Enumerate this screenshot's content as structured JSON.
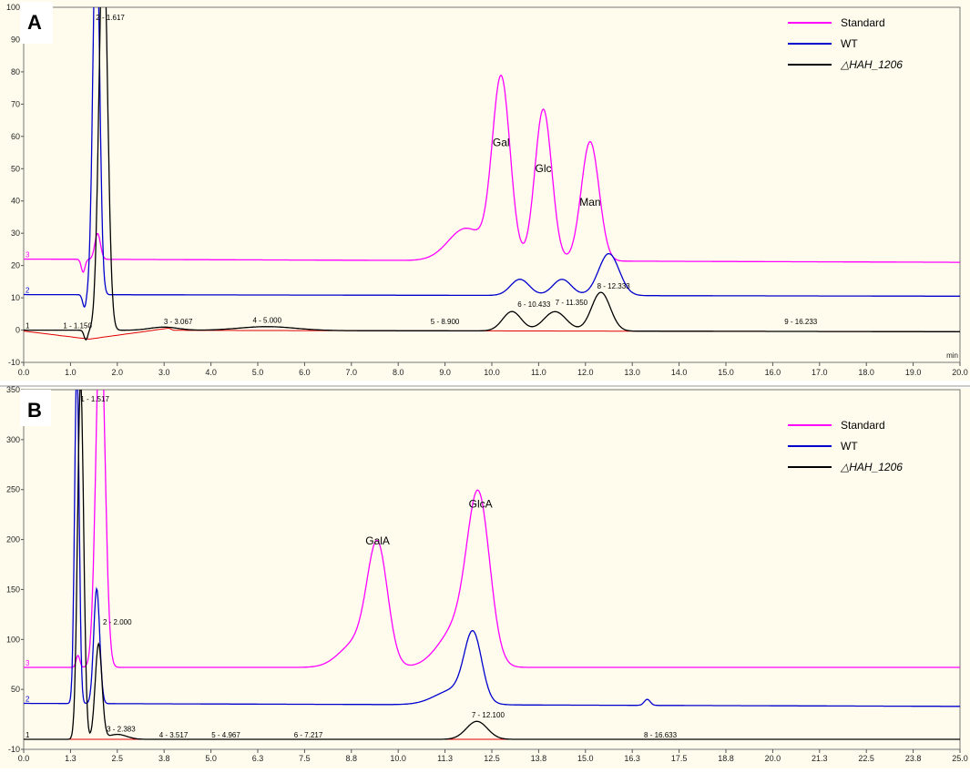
{
  "chart_data": [
    {
      "panel": "A",
      "type": "line",
      "y_unit": "nC",
      "x_unit": "min",
      "xlim": [
        0,
        20
      ],
      "ylim": [
        -10,
        100
      ],
      "x_ticks": [
        "0.0",
        "1.0",
        "2.0",
        "3.0",
        "4.0",
        "5.0",
        "6.0",
        "7.0",
        "8.0",
        "9.0",
        "10.0",
        "11.0",
        "12.0",
        "13.0",
        "14.0",
        "15.0",
        "16.0",
        "17.0",
        "18.0",
        "19.0",
        "20.0"
      ],
      "y_ticks": [
        "-10",
        "0",
        "10",
        "20",
        "30",
        "40",
        "50",
        "60",
        "70",
        "80",
        "90",
        "100"
      ],
      "trace_markers": [
        "3",
        "2",
        "1"
      ],
      "legend": [
        {
          "name": "Standard",
          "color": "#ff00ff",
          "italic": false
        },
        {
          "name": "WT",
          "color": "#0000cc",
          "italic": false
        },
        {
          "name": "△HAH_1206",
          "color": "#000000",
          "italic": true
        }
      ],
      "series": [
        {
          "name": "Standard",
          "color": "#ff00ff",
          "baseline": 22,
          "baseline_end": 21,
          "start_offset": 0,
          "peaks": [
            [
              1.27,
              -4,
              0.04
            ],
            [
              1.58,
              8,
              0.06
            ],
            [
              9.45,
              10,
              0.38
            ],
            [
              10.2,
              56,
              0.19
            ],
            [
              11.1,
              47,
              0.18
            ],
            [
              12.1,
              37,
              0.19
            ]
          ]
        },
        {
          "name": "WT",
          "color": "#0000cc",
          "baseline": 11,
          "baseline_end": 10.5,
          "start_offset": 0,
          "peaks": [
            [
              1.3,
              -4,
              0.04
            ],
            [
              1.55,
              120,
              0.07
            ],
            [
              10.6,
              5,
              0.2
            ],
            [
              11.5,
              5,
              0.2
            ],
            [
              12.5,
              13,
              0.22
            ]
          ]
        },
        {
          "name": "△HAH_1206",
          "color": "#000000",
          "baseline": 0,
          "baseline_end": -0.5,
          "start_offset": 0,
          "peaks": [
            [
              1.33,
              -3,
              0.04
            ],
            [
              1.7,
              125,
              0.09
            ],
            [
              3.0,
              1,
              0.3
            ],
            [
              5.2,
              1.2,
              0.6
            ],
            [
              10.43,
              6,
              0.2
            ],
            [
              11.35,
              6,
              0.24
            ],
            [
              12.33,
              12,
              0.2
            ]
          ]
        }
      ],
      "peak_labels": [
        {
          "text": "Gal",
          "x": 10.2,
          "y": 57
        },
        {
          "text": "Glc",
          "x": 11.1,
          "y": 49
        },
        {
          "text": "Man",
          "x": 12.1,
          "y": 38.5
        }
      ],
      "integration_labels": [
        {
          "text": "1 - 1.150",
          "x": 1.15,
          "y": 0.6
        },
        {
          "text": "2 - 1.617",
          "x": 1.85,
          "y": 96
        },
        {
          "text": "3 - 3.067",
          "x": 3.3,
          "y": 1.8
        },
        {
          "text": "4 - 5.000",
          "x": 5.2,
          "y": 2.2
        },
        {
          "text": "5 - 8.900",
          "x": 9.0,
          "y": 1.8
        },
        {
          "text": "6 - 10.433",
          "x": 10.9,
          "y": 7.2
        },
        {
          "text": "7 - 11.350",
          "x": 11.7,
          "y": 7.8
        },
        {
          "text": "8 - 12.333",
          "x": 12.6,
          "y": 12.8
        },
        {
          "text": "9 - 16.233",
          "x": 16.6,
          "y": 1.8
        }
      ]
    },
    {
      "panel": "B",
      "type": "line",
      "y_unit": "",
      "x_unit": "",
      "xlim": [
        0,
        25
      ],
      "ylim": [
        -10,
        350
      ],
      "x_ticks": [
        "0.0",
        "1.3",
        "2.5",
        "3.8",
        "5.0",
        "6.3",
        "7.5",
        "8.8",
        "10.0",
        "11.3",
        "12.5",
        "13.8",
        "15.0",
        "16.3",
        "17.5",
        "18.8",
        "20.0",
        "21.3",
        "22.5",
        "23.8",
        "25.0"
      ],
      "y_ticks": [
        "-10",
        "50",
        "100",
        "150",
        "200",
        "250",
        "300",
        "350"
      ],
      "trace_markers": [
        "3",
        "2",
        "1"
      ],
      "legend": [
        {
          "name": "Standard",
          "color": "#ff00ff",
          "italic": false
        },
        {
          "name": "WT",
          "color": "#0000cc",
          "italic": false
        },
        {
          "name": "△HAH_1206",
          "color": "#000000",
          "italic": true
        }
      ],
      "series": [
        {
          "name": "Standard",
          "color": "#ff00ff",
          "baseline": 72,
          "baseline_end": 72,
          "start_offset": 0,
          "peaks": [
            [
              1.45,
              12,
              0.05
            ],
            [
              2.05,
              360,
              0.12
            ],
            [
              8.9,
              25,
              0.45
            ],
            [
              9.45,
              115,
              0.27
            ],
            [
              11.6,
              40,
              0.5
            ],
            [
              12.15,
              155,
              0.3
            ]
          ]
        },
        {
          "name": "WT",
          "color": "#0000cc",
          "baseline": 36,
          "baseline_end": 33,
          "start_offset": 0,
          "peaks": [
            [
              1.42,
              340,
              0.06
            ],
            [
              1.95,
              115,
              0.08
            ],
            [
              11.5,
              15,
              0.5
            ],
            [
              12.0,
              65,
              0.23
            ],
            [
              16.65,
              6,
              0.08
            ]
          ]
        },
        {
          "name": "△HAH_1206",
          "color": "#000000",
          "baseline": 0,
          "baseline_end": 0,
          "start_offset": 0,
          "peaks": [
            [
              1.52,
              360,
              0.08
            ],
            [
              2.0,
              95,
              0.09
            ],
            [
              2.5,
              5,
              0.25
            ],
            [
              12.1,
              18,
              0.28
            ]
          ]
        }
      ],
      "peak_labels": [
        {
          "text": "GalA",
          "x": 9.45,
          "y": 195
        },
        {
          "text": "GlcA",
          "x": 12.2,
          "y": 232
        }
      ],
      "integration_labels": [
        {
          "text": "1 - 1.517",
          "x": 1.9,
          "y": 338
        },
        {
          "text": "2 - 2.000",
          "x": 2.5,
          "y": 115
        },
        {
          "text": "3 - 2.383",
          "x": 2.6,
          "y": 8
        },
        {
          "text": "4 - 3.517",
          "x": 4.0,
          "y": 2
        },
        {
          "text": "5 - 4.967",
          "x": 5.4,
          "y": 2
        },
        {
          "text": "6 - 7.217",
          "x": 7.6,
          "y": 2
        },
        {
          "text": "7 - 12.100",
          "x": 12.4,
          "y": 22
        },
        {
          "text": "8 - 16.633",
          "x": 17.0,
          "y": 2
        }
      ]
    }
  ],
  "panels": [
    {
      "label": "A"
    },
    {
      "label": "B"
    }
  ]
}
